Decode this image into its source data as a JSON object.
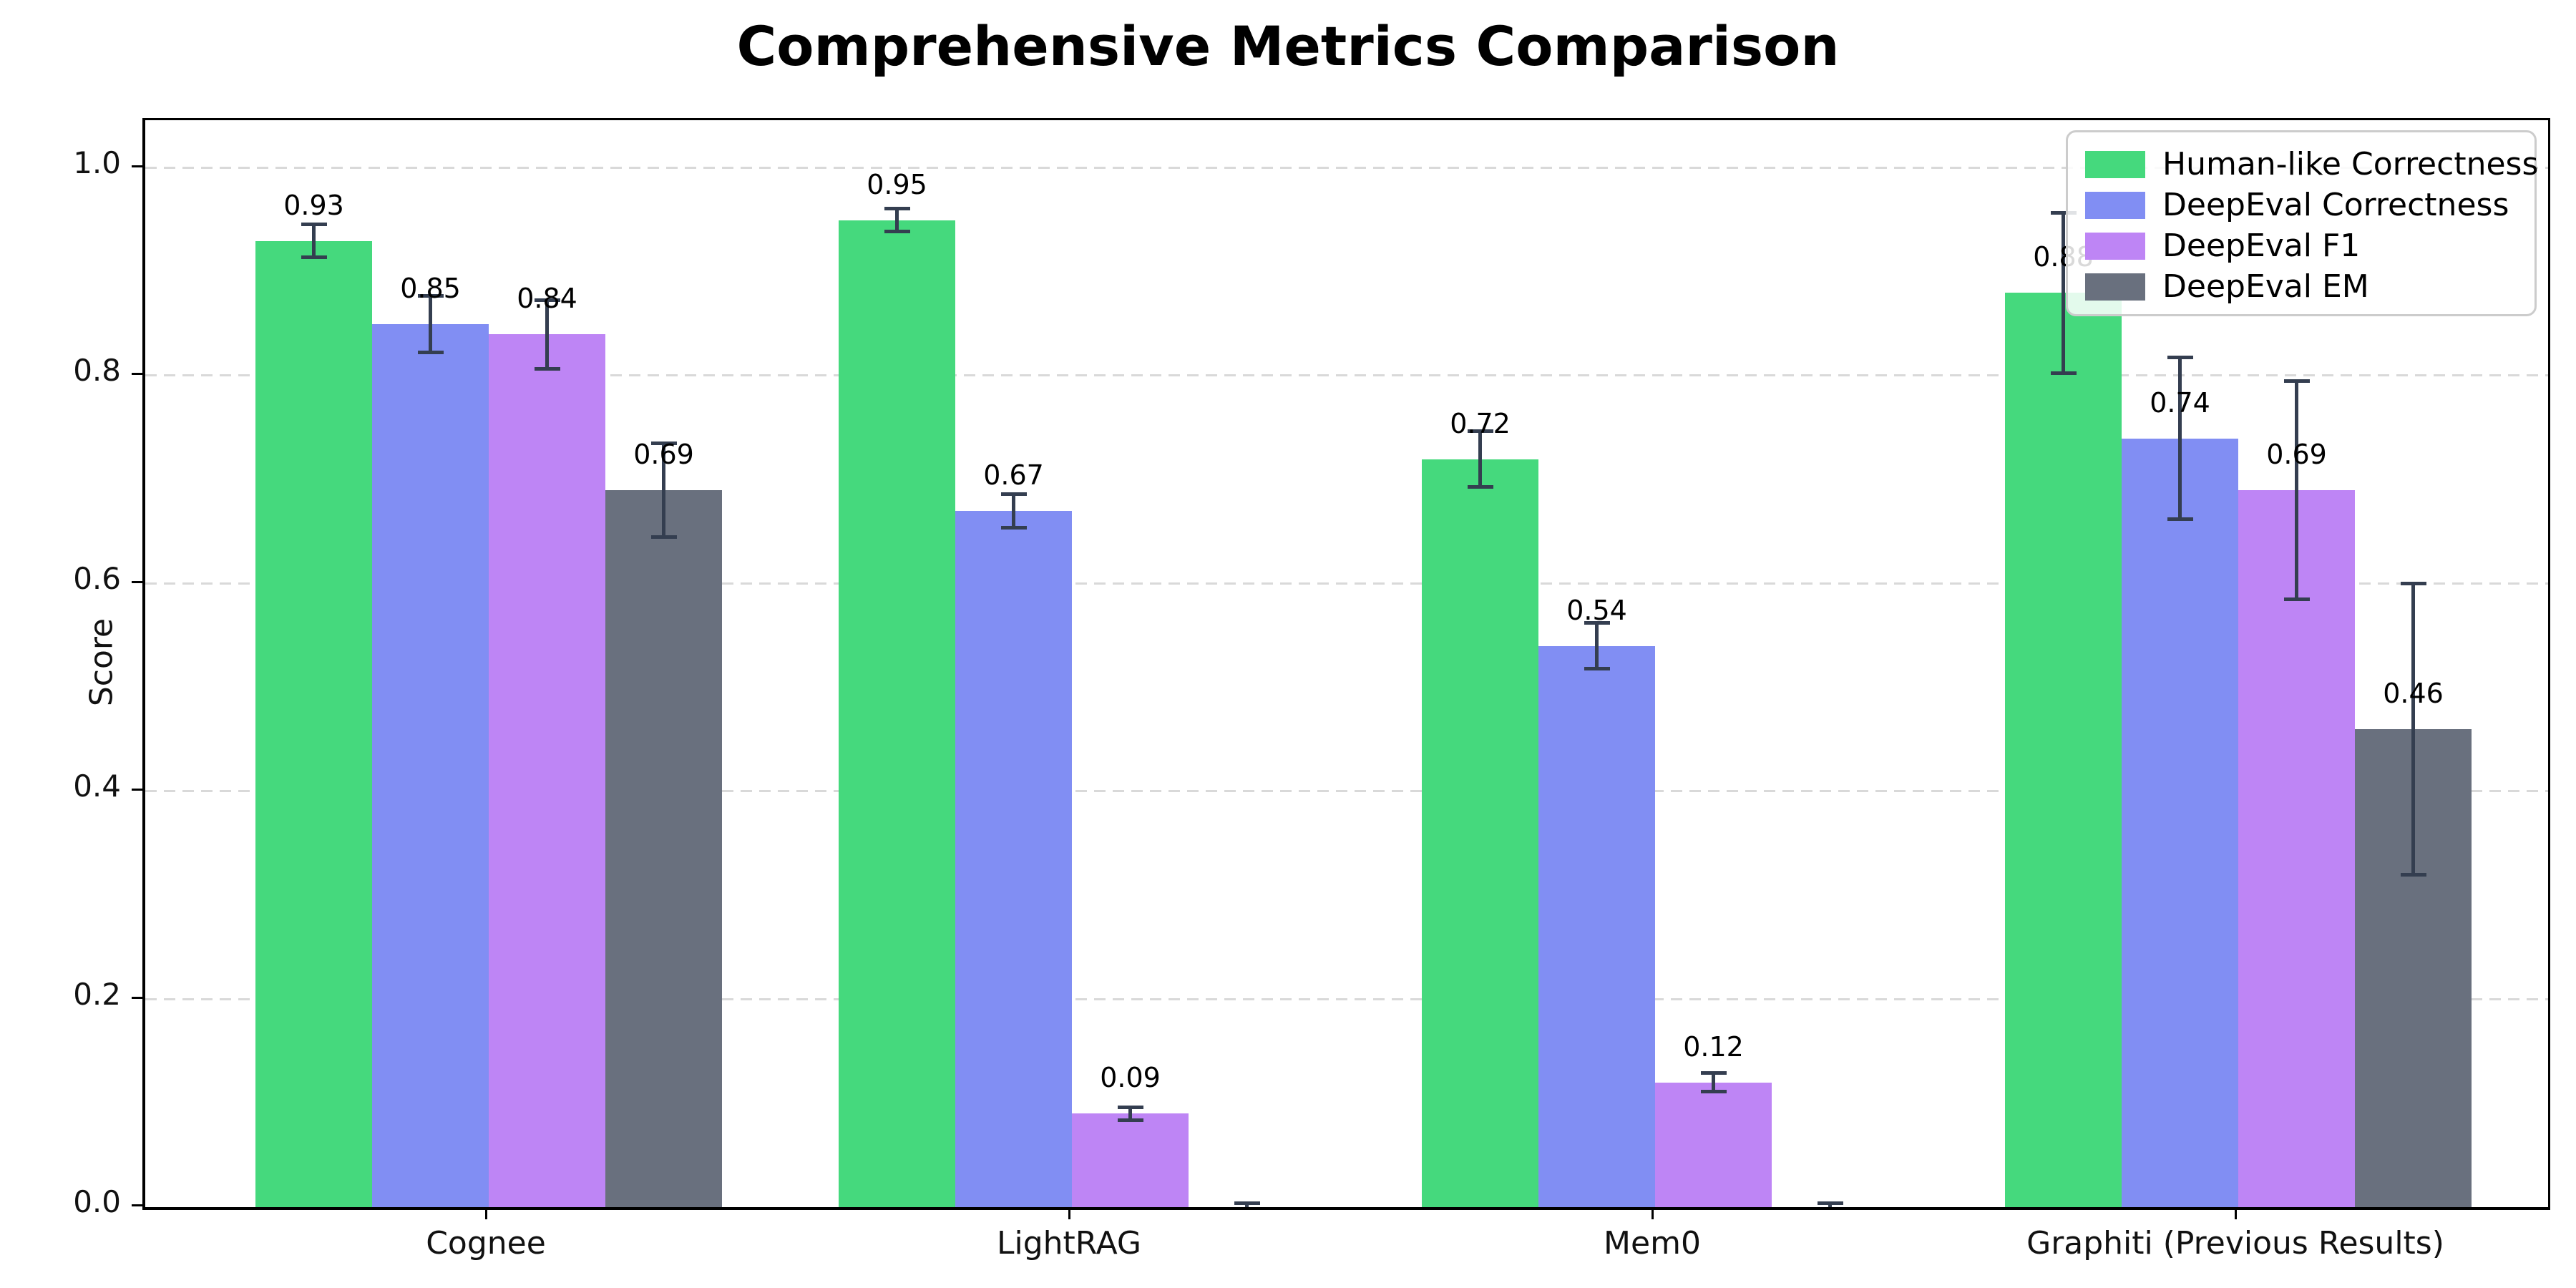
{
  "title": "Comprehensive Metrics Comparison",
  "axes": {
    "ylabel": "Score",
    "yticks": [
      {
        "value": 0.0,
        "label": "0.0"
      },
      {
        "value": 0.2,
        "label": "0.2"
      },
      {
        "value": 0.4,
        "label": "0.4"
      },
      {
        "value": 0.6,
        "label": "0.6"
      },
      {
        "value": 0.8,
        "label": "0.8"
      },
      {
        "value": 1.0,
        "label": "1.0"
      }
    ]
  },
  "chart_data": {
    "type": "bar",
    "title": "Comprehensive Metrics Comparison",
    "xlabel": "",
    "ylabel": "Score",
    "ylim": [
      0,
      1.046
    ],
    "grid": "horizontal dashed",
    "legend_position": "upper right",
    "error_bar_color": "#343e50",
    "categories": [
      "Cognee",
      "LightRAG",
      "Mem0",
      "Graphiti (Previous Results)"
    ],
    "series": [
      {
        "name": "Human-like Correctness",
        "color": "#45d97d",
        "values": [
          0.93,
          0.95,
          0.72,
          0.88
        ],
        "errors": [
          0.016,
          0.011,
          0.027,
          0.077
        ],
        "labels": [
          "0.93",
          "0.95",
          "0.72",
          "0.88"
        ]
      },
      {
        "name": "DeepEval Correctness",
        "color": "#818ef3",
        "values": [
          0.85,
          0.67,
          0.54,
          0.74
        ],
        "errors": [
          0.027,
          0.016,
          0.022,
          0.078
        ],
        "labels": [
          "0.85",
          "0.67",
          "0.54",
          "0.74"
        ]
      },
      {
        "name": "DeepEval F1",
        "color": "#be85f5",
        "values": [
          0.84,
          0.09,
          0.12,
          0.69
        ],
        "errors": [
          0.033,
          0.006,
          0.009,
          0.105
        ],
        "labels": [
          "0.84",
          "0.09",
          "0.12",
          "0.69"
        ]
      },
      {
        "name": "DeepEval EM",
        "color": "#69707e",
        "values": [
          0.69,
          0.0,
          0.0,
          0.46
        ],
        "errors": [
          0.045,
          0.004,
          0.004,
          0.14
        ],
        "labels": [
          "0.69",
          null,
          null,
          "0.46"
        ]
      }
    ]
  }
}
